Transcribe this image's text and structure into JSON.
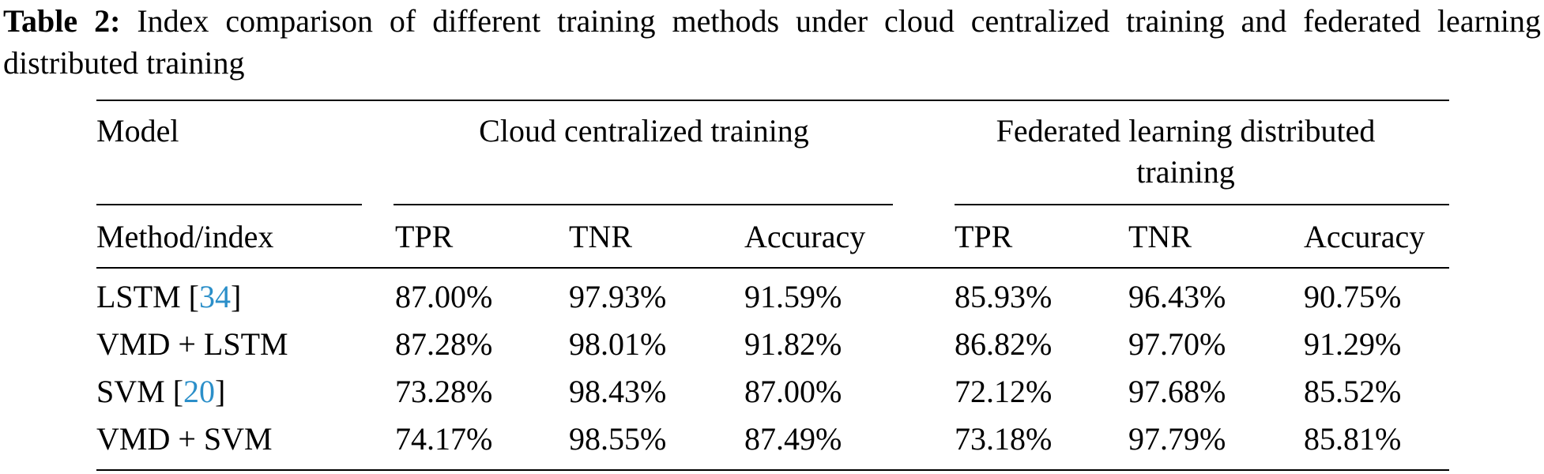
{
  "caption": {
    "label": "Table 2:",
    "text": "Index comparison of different training methods under cloud centralized training and federated learning distributed training"
  },
  "table": {
    "group_headers": {
      "model": "Model",
      "cloud": "Cloud centralized training",
      "federated_line1": "Federated learning distributed",
      "federated_line2": "training"
    },
    "sub_headers": {
      "method": "Method/index",
      "cloud_tpr": "TPR",
      "cloud_tnr": "TNR",
      "cloud_acc": "Accuracy",
      "fed_tpr": "TPR",
      "fed_tnr": "TNR",
      "fed_acc": "Accuracy"
    },
    "rows": [
      {
        "method": "LSTM [",
        "ref": "34",
        "method_end": "]",
        "values": [
          "87.00%",
          "97.93%",
          "91.59%",
          "85.93%",
          "96.43%",
          "90.75%"
        ]
      },
      {
        "method": "VMD + LSTM",
        "ref": "",
        "method_end": "",
        "values": [
          "87.28%",
          "98.01%",
          "91.82%",
          "86.82%",
          "97.70%",
          "91.29%"
        ]
      },
      {
        "method": "SVM [",
        "ref": "20",
        "method_end": "]",
        "values": [
          "73.28%",
          "98.43%",
          "87.00%",
          "72.12%",
          "97.68%",
          "85.52%"
        ]
      },
      {
        "method": "VMD + SVM",
        "ref": "",
        "method_end": "",
        "values": [
          "74.17%",
          "98.55%",
          "87.49%",
          "73.18%",
          "97.79%",
          "85.81%"
        ]
      }
    ]
  }
}
